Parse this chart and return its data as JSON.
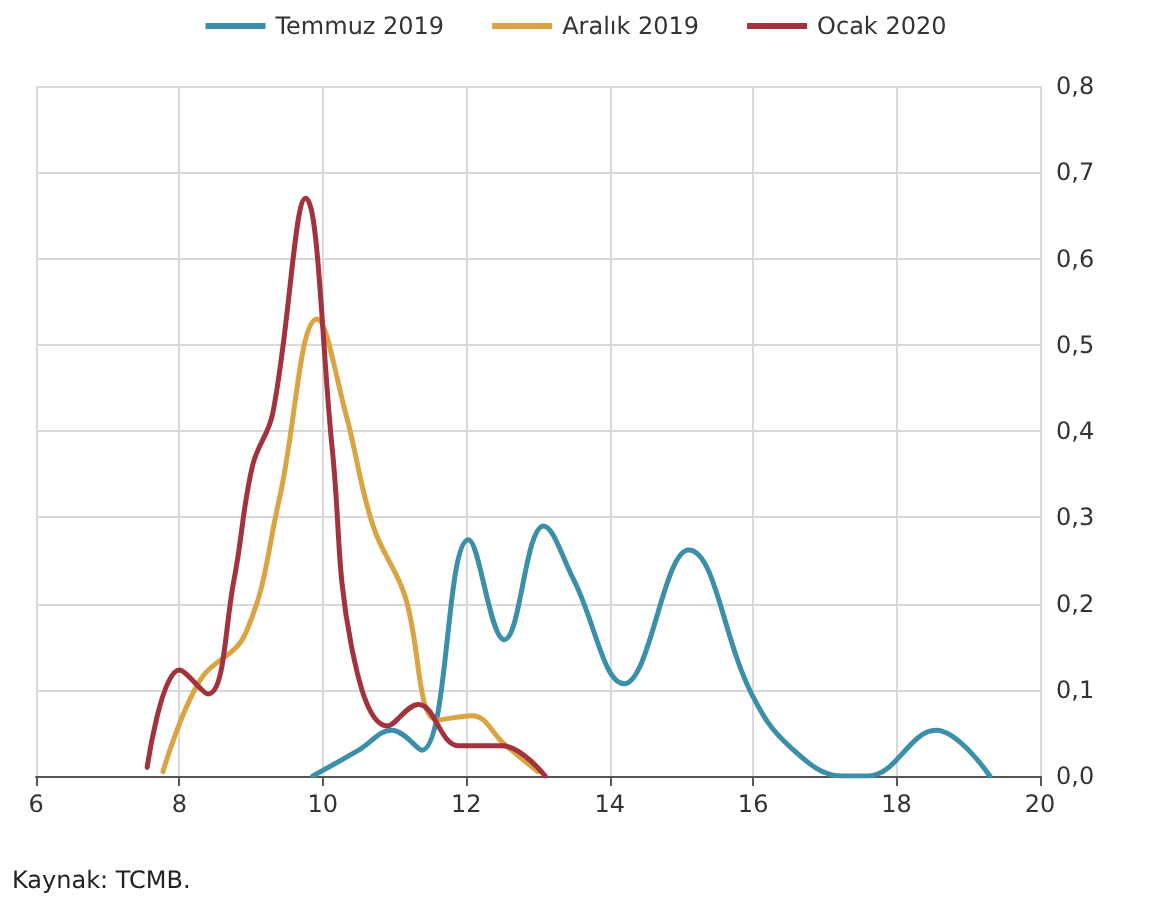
{
  "chart_data": {
    "type": "line",
    "legend": "top",
    "grid": true,
    "marker": "none",
    "line_style": "solid",
    "annotations": [
      "Kaynak: TCMB."
    ],
    "xlim": [
      6,
      20
    ],
    "xticks": [
      6,
      8,
      10,
      12,
      14,
      16,
      18,
      20
    ],
    "ylim": [
      0,
      0.8
    ],
    "yticks": [
      {
        "value": 0,
        "label": "0,0"
      },
      {
        "value": 0.1,
        "label": "0,1"
      },
      {
        "value": 0.2,
        "label": "0,2"
      },
      {
        "value": 0.3,
        "label": "0,3"
      },
      {
        "value": 0.4,
        "label": "0,4"
      },
      {
        "value": 0.5,
        "label": "0,5"
      },
      {
        "value": 0.6,
        "label": "0,6"
      },
      {
        "value": 0.7,
        "label": "0,7"
      },
      {
        "value": 0.8,
        "label": "0,8"
      }
    ],
    "series": [
      {
        "name": "Temmuz 2019",
        "color": "#3b8fa8",
        "x": [
          9.86,
          10.5,
          10.96,
          11.38,
          12.03,
          12.53,
          13.08,
          13.5,
          14.2,
          15.1,
          15.98,
          16.5,
          17.25,
          17.6,
          18.55,
          19.3
        ],
        "values": [
          0.0,
          0.03,
          0.053,
          0.03,
          0.274,
          0.158,
          0.29,
          0.227,
          0.107,
          0.262,
          0.095,
          0.035,
          0.0,
          0.0,
          0.053,
          0.0
        ]
      },
      {
        "name": "Aralık 2019",
        "color": "#d9a441",
        "x": [
          7.77,
          8.28,
          8.92,
          9.39,
          9.92,
          10.32,
          10.7,
          11.14,
          11.6,
          12.08,
          12.53,
          13.0
        ],
        "values": [
          0.005,
          0.11,
          0.165,
          0.32,
          0.53,
          0.42,
          0.29,
          0.21,
          0.065,
          0.07,
          0.037,
          0.005
        ]
      },
      {
        "name": "Ocak 2020",
        "color": "#a3323f",
        "x": [
          7.55,
          8.0,
          8.4,
          8.76,
          9.02,
          9.3,
          9.76,
          10.13,
          10.4,
          10.9,
          11.33,
          11.9,
          12.5,
          13.1
        ],
        "values": [
          0.01,
          0.123,
          0.095,
          0.227,
          0.36,
          0.42,
          0.67,
          0.38,
          0.15,
          0.058,
          0.083,
          0.035,
          0.035,
          0.0
        ]
      }
    ]
  }
}
